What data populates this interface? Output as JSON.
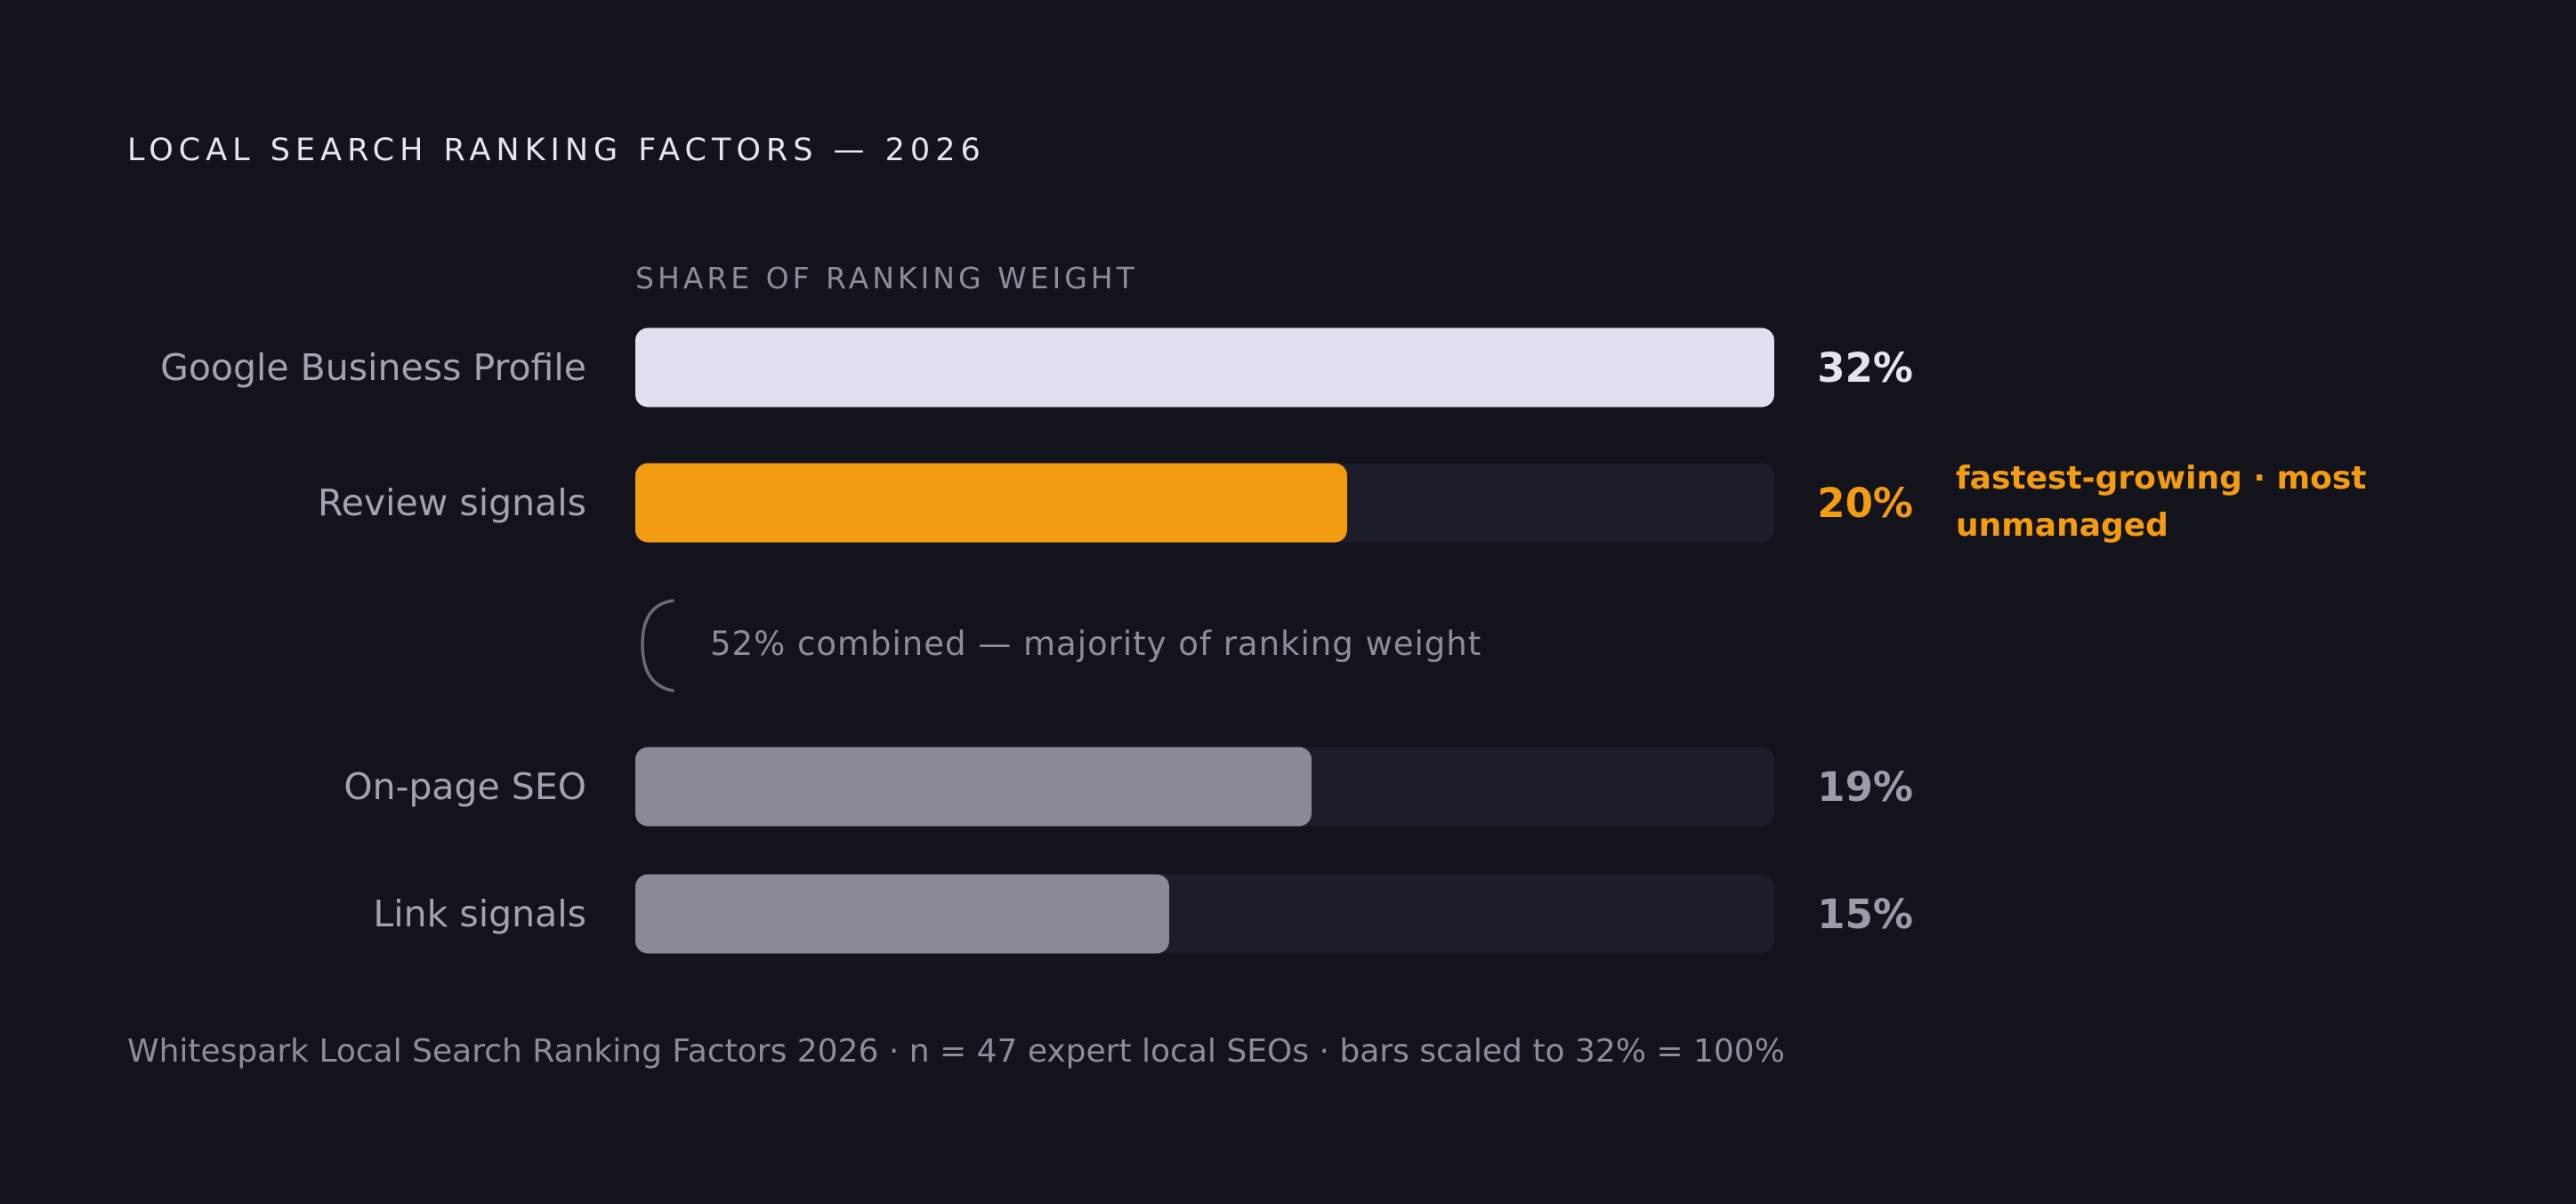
{
  "chart_data": {
    "type": "bar",
    "orientation": "horizontal",
    "title": "LOCAL SEARCH RANKING FACTORS — 2026",
    "subtitle": "SHARE OF RANKING WEIGHT",
    "categories": [
      "Google Business Profile",
      "Review signals",
      "On-page SEO",
      "Link signals"
    ],
    "values": [
      32,
      20,
      19,
      15
    ],
    "value_labels": [
      "32%",
      "20%",
      "19%",
      "15%"
    ],
    "xlim": [
      0,
      32
    ],
    "grid": false,
    "bar_colors": [
      "#e2dff0",
      "#f39c12",
      "#8a8998",
      "#8a8998"
    ],
    "value_label_colors": [
      "#e6e4ef",
      "#f39c12",
      "#9c9ba8",
      "#9c9ba8"
    ],
    "track_color": "#1d1c2b",
    "highlight": {
      "category": "Review signals",
      "lines": [
        "fastest-growing · most",
        "unmanaged"
      ]
    },
    "bracket_note": "52% combined — majority of ranking weight",
    "footnote": "Whitespark Local Search Ranking Factors 2026 · n = 47 expert local SEOs · bars scaled to 32% = 100%"
  }
}
